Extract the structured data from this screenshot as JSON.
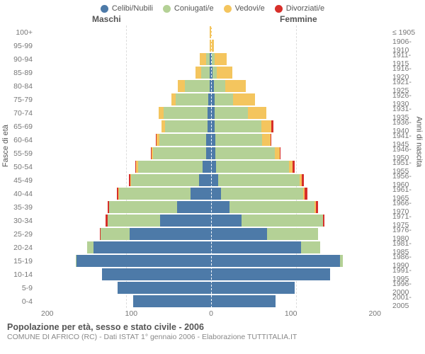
{
  "legend": [
    {
      "label": "Celibi/Nubili",
      "color": "#4d7aa8"
    },
    {
      "label": "Coniugati/e",
      "color": "#b4d196"
    },
    {
      "label": "Vedovi/e",
      "color": "#f4c55e"
    },
    {
      "label": "Divorziati/e",
      "color": "#d72f2a"
    }
  ],
  "gender": {
    "male": "Maschi",
    "female": "Femmine"
  },
  "axes": {
    "left_title": "Fasce di età",
    "right_title": "Anni di nascita",
    "x_ticks": [
      "200",
      "100",
      "0",
      "100",
      "200"
    ],
    "max": 200
  },
  "colors": {
    "single": "#4d7aa8",
    "married": "#b4d196",
    "widowed": "#f4c55e",
    "divorced": "#d72f2a",
    "grid": "#dddddd",
    "bg": "#ffffff"
  },
  "series_order": [
    "single",
    "married",
    "widowed",
    "divorced"
  ],
  "rows": [
    {
      "age": "100+",
      "birth": "≤ 1905",
      "m": {
        "single": 0,
        "married": 0,
        "widowed": 2,
        "divorced": 0
      },
      "f": {
        "single": 0,
        "married": 0,
        "widowed": 1,
        "divorced": 0
      }
    },
    {
      "age": "95-99",
      "birth": "1906-1910",
      "m": {
        "single": 0,
        "married": 0,
        "widowed": 2,
        "divorced": 0
      },
      "f": {
        "single": 0,
        "married": 0,
        "widowed": 3,
        "divorced": 0
      }
    },
    {
      "age": "90-94",
      "birth": "1911-1915",
      "m": {
        "single": 2,
        "married": 4,
        "widowed": 7,
        "divorced": 0
      },
      "f": {
        "single": 1,
        "married": 3,
        "widowed": 14,
        "divorced": 0
      }
    },
    {
      "age": "85-89",
      "birth": "1916-1920",
      "m": {
        "single": 2,
        "married": 10,
        "widowed": 6,
        "divorced": 0
      },
      "f": {
        "single": 2,
        "married": 5,
        "widowed": 18,
        "divorced": 0
      }
    },
    {
      "age": "80-84",
      "birth": "1921-1925",
      "m": {
        "single": 2,
        "married": 29,
        "widowed": 8,
        "divorced": 0
      },
      "f": {
        "single": 3,
        "married": 14,
        "widowed": 24,
        "divorced": 0
      }
    },
    {
      "age": "75-79",
      "birth": "1926-1930",
      "m": {
        "single": 3,
        "married": 39,
        "widowed": 5,
        "divorced": 0
      },
      "f": {
        "single": 4,
        "married": 22,
        "widowed": 26,
        "divorced": 0
      }
    },
    {
      "age": "70-74",
      "birth": "1931-1935",
      "m": {
        "single": 4,
        "married": 52,
        "widowed": 6,
        "divorced": 0
      },
      "f": {
        "single": 4,
        "married": 39,
        "widowed": 22,
        "divorced": 0
      }
    },
    {
      "age": "65-69",
      "birth": "1936-1940",
      "m": {
        "single": 4,
        "married": 50,
        "widowed": 4,
        "divorced": 0
      },
      "f": {
        "single": 4,
        "married": 55,
        "widowed": 12,
        "divorced": 2
      }
    },
    {
      "age": "60-64",
      "birth": "1941-1945",
      "m": {
        "single": 6,
        "married": 55,
        "widowed": 3,
        "divorced": 1
      },
      "f": {
        "single": 5,
        "married": 55,
        "widowed": 10,
        "divorced": 1
      }
    },
    {
      "age": "55-59",
      "birth": "1946-1950",
      "m": {
        "single": 6,
        "married": 62,
        "widowed": 2,
        "divorced": 1
      },
      "f": {
        "single": 5,
        "married": 70,
        "widowed": 6,
        "divorced": 1
      }
    },
    {
      "age": "50-54",
      "birth": "1951-1955",
      "m": {
        "single": 10,
        "married": 76,
        "widowed": 2,
        "divorced": 1
      },
      "f": {
        "single": 6,
        "married": 86,
        "widowed": 4,
        "divorced": 2
      }
    },
    {
      "age": "45-49",
      "birth": "1956-1960",
      "m": {
        "single": 14,
        "married": 80,
        "widowed": 1,
        "divorced": 2
      },
      "f": {
        "single": 8,
        "married": 96,
        "widowed": 3,
        "divorced": 2
      }
    },
    {
      "age": "40-44",
      "birth": "1961-1965",
      "m": {
        "single": 24,
        "married": 84,
        "widowed": 1,
        "divorced": 2
      },
      "f": {
        "single": 12,
        "married": 96,
        "widowed": 2,
        "divorced": 3
      }
    },
    {
      "age": "35-39",
      "birth": "1966-1970",
      "m": {
        "single": 40,
        "married": 80,
        "widowed": 0,
        "divorced": 2
      },
      "f": {
        "single": 22,
        "married": 100,
        "widowed": 1,
        "divorced": 3
      }
    },
    {
      "age": "30-34",
      "birth": "1971-1975",
      "m": {
        "single": 60,
        "married": 62,
        "widowed": 0,
        "divorced": 2
      },
      "f": {
        "single": 36,
        "married": 96,
        "widowed": 0,
        "divorced": 1
      }
    },
    {
      "age": "25-29",
      "birth": "1976-1980",
      "m": {
        "single": 96,
        "married": 34,
        "widowed": 0,
        "divorced": 1
      },
      "f": {
        "single": 66,
        "married": 60,
        "widowed": 0,
        "divorced": 0
      }
    },
    {
      "age": "20-24",
      "birth": "1981-1985",
      "m": {
        "single": 138,
        "married": 8,
        "widowed": 0,
        "divorced": 0
      },
      "f": {
        "single": 106,
        "married": 22,
        "widowed": 0,
        "divorced": 0
      }
    },
    {
      "age": "15-19",
      "birth": "1986-1990",
      "m": {
        "single": 158,
        "married": 1,
        "widowed": 0,
        "divorced": 0
      },
      "f": {
        "single": 152,
        "married": 3,
        "widowed": 0,
        "divorced": 0
      }
    },
    {
      "age": "10-14",
      "birth": "1991-1995",
      "m": {
        "single": 128,
        "married": 0,
        "widowed": 0,
        "divorced": 0
      },
      "f": {
        "single": 140,
        "married": 0,
        "widowed": 0,
        "divorced": 0
      }
    },
    {
      "age": "5-9",
      "birth": "1996-2000",
      "m": {
        "single": 110,
        "married": 0,
        "widowed": 0,
        "divorced": 0
      },
      "f": {
        "single": 98,
        "married": 0,
        "widowed": 0,
        "divorced": 0
      }
    },
    {
      "age": "0-4",
      "birth": "2001-2005",
      "m": {
        "single": 92,
        "married": 0,
        "widowed": 0,
        "divorced": 0
      },
      "f": {
        "single": 76,
        "married": 0,
        "widowed": 0,
        "divorced": 0
      }
    }
  ],
  "footer": {
    "title": "Popolazione per età, sesso e stato civile - 2006",
    "subtitle": "COMUNE DI AFRICO (RC) - Dati ISTAT 1° gennaio 2006 - Elaborazione TUTTITALIA.IT"
  }
}
